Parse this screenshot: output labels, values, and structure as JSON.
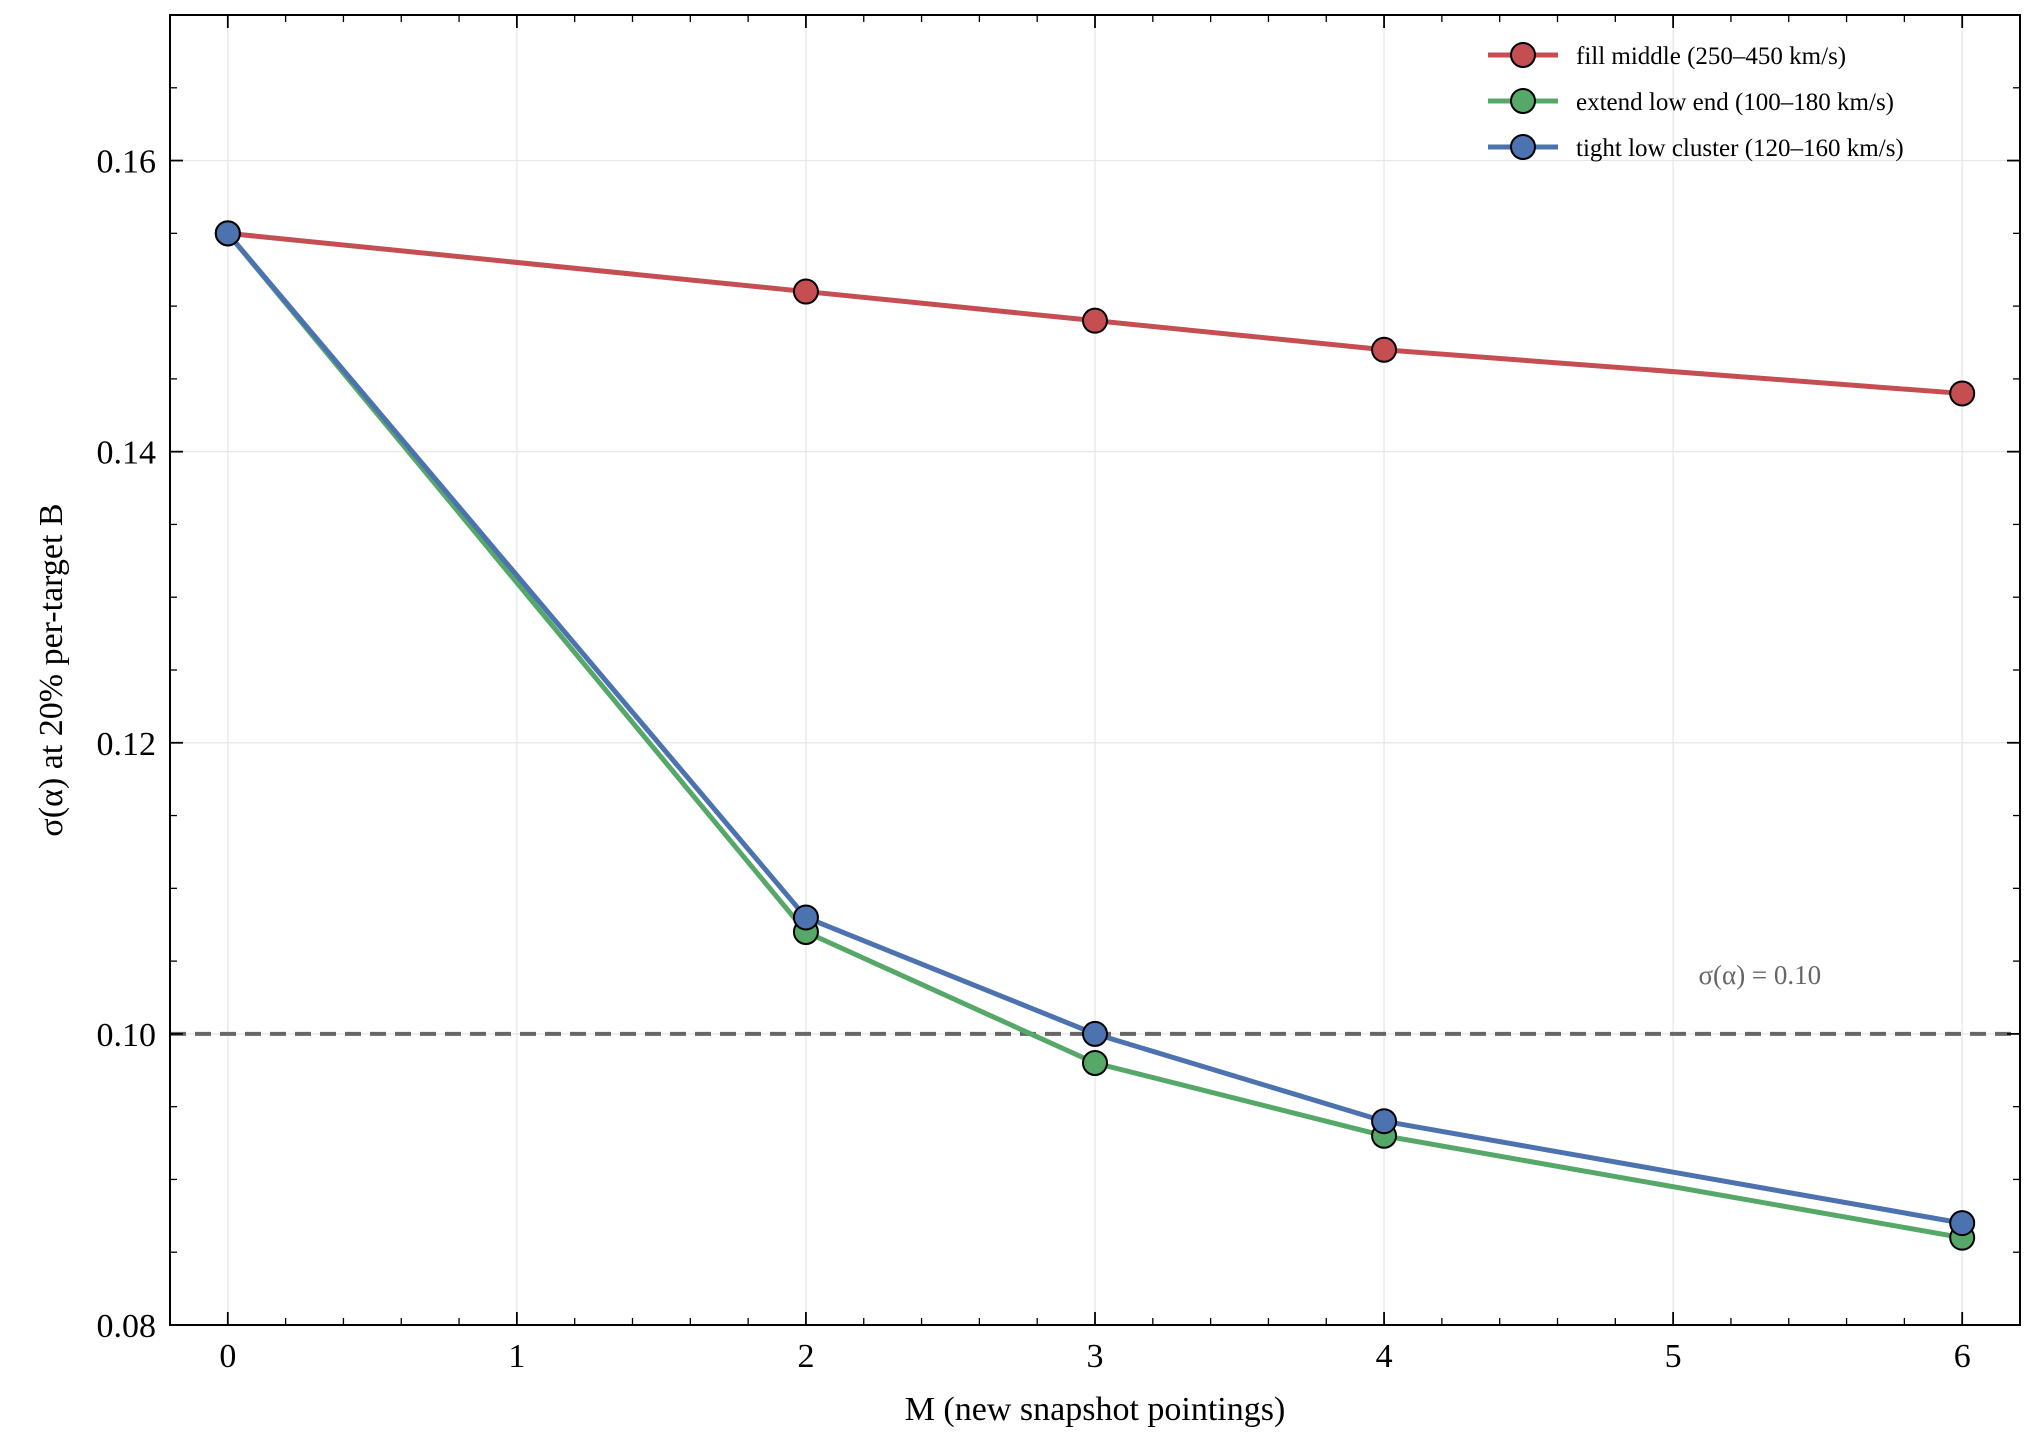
{
  "chart_data": {
    "type": "line",
    "title": "",
    "xlabel": "M  (new snapshot pointings)",
    "ylabel": "σ(α)  at 20% per-target B",
    "xlim": [
      -0.2,
      6.2
    ],
    "ylim": [
      0.08,
      0.17
    ],
    "x_ticks": [
      0,
      1,
      2,
      3,
      4,
      5,
      6
    ],
    "x_tick_labels": [
      "0",
      "1",
      "2",
      "3",
      "4",
      "5",
      "6"
    ],
    "y_ticks": [
      0.08,
      0.1,
      0.12,
      0.14,
      0.16
    ],
    "y_tick_labels": [
      "0.08",
      "0.10",
      "0.12",
      "0.14",
      "0.16"
    ],
    "grid": true,
    "legend_position": "top-right",
    "series": [
      {
        "name": "fill middle (250–450 km/s)",
        "color": "#c44e52",
        "x": [
          0,
          2,
          3,
          4,
          6
        ],
        "y": [
          0.155,
          0.151,
          0.149,
          0.147,
          0.144
        ]
      },
      {
        "name": "extend low end (100–180 km/s)",
        "color": "#55a868",
        "x": [
          0,
          2,
          3,
          4,
          6
        ],
        "y": [
          0.155,
          0.107,
          0.098,
          0.093,
          0.086
        ]
      },
      {
        "name": "tight low cluster (120–160 km/s)",
        "color": "#4c72b0",
        "x": [
          0,
          2,
          3,
          4,
          6
        ],
        "y": [
          0.155,
          0.108,
          0.1,
          0.094,
          0.087
        ]
      }
    ],
    "reference_line": {
      "y": 0.1,
      "color": "#666666",
      "style": "dashed",
      "label": "σ(α) = 0.10"
    }
  }
}
